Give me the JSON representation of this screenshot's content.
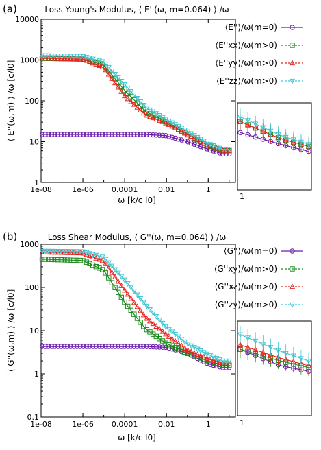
{
  "chart_data": [
    {
      "panel": "(a)",
      "type": "line",
      "title": "Loss Young's Modulus, ⟨ E''(ω, m=0.064) ⟩ /ω",
      "xlabel": "ω [k/c l0]",
      "ylabel": "⟨ E''(ω,m) ⟩ /ω [c/l0]",
      "xscale": "log",
      "yscale": "log",
      "xlim": [
        1e-08,
        20
      ],
      "ylim": [
        1,
        10000
      ],
      "xticks": [
        "1e-08",
        "1e-06",
        "0.0001",
        "0.01",
        "1"
      ],
      "yticks": [
        "1",
        "10",
        "100",
        "1000",
        "10000"
      ],
      "inset_label": "1",
      "series": [
        {
          "name": "⟨E''⟩/ω(m=0)",
          "color": "#6a1aa8",
          "marker": "circle",
          "x": [
            1e-08,
            1e-06,
            0.0001,
            0.001,
            0.01,
            0.1,
            1,
            5
          ],
          "y": [
            15,
            15,
            15,
            15,
            14,
            10,
            6.5,
            5
          ]
        },
        {
          "name": "⟨E''xx⟩/ω(m>0)",
          "color": "#1a8a1a",
          "marker": "square",
          "x": [
            1e-08,
            1e-06,
            1e-05,
            0.0001,
            0.001,
            0.01,
            0.1,
            1,
            5
          ],
          "y": [
            1100,
            1050,
            750,
            180,
            55,
            30,
            15,
            8,
            6
          ]
        },
        {
          "name": "⟨E''yy⟩/ω(m>0)",
          "color": "#e8231d",
          "marker": "triangle-up",
          "x": [
            1e-08,
            1e-06,
            1e-05,
            0.0001,
            0.001,
            0.01,
            0.1,
            1,
            5
          ],
          "y": [
            1100,
            1050,
            650,
            130,
            45,
            28,
            15,
            8,
            6
          ]
        },
        {
          "name": "⟨E''zz⟩/ω(m>0)",
          "color": "#3fc6d2",
          "marker": "triangle-down",
          "x": [
            1e-08,
            1e-06,
            1e-05,
            0.0001,
            0.001,
            0.01,
            0.1,
            1,
            5
          ],
          "y": [
            1300,
            1250,
            900,
            250,
            70,
            35,
            18,
            9,
            6.5
          ]
        }
      ]
    },
    {
      "panel": "(b)",
      "type": "line",
      "title": "Loss Shear Modulus, ⟨ G''(ω, m=0.064) ⟩ /ω",
      "xlabel": "ω [k/c l0]",
      "ylabel": "⟨ G''(ω,m) ⟩ /ω [c/l0]",
      "xscale": "log",
      "yscale": "log",
      "xlim": [
        1e-08,
        20
      ],
      "ylim": [
        0.1,
        1000
      ],
      "xticks": [
        "1e-08",
        "1e-06",
        "0.0001",
        "0.01",
        "1"
      ],
      "yticks": [
        "0.1",
        "1",
        "10",
        "100",
        "1000"
      ],
      "inset_label": "1",
      "series": [
        {
          "name": "⟨G''⟩/ω(m=0)",
          "color": "#6a1aa8",
          "marker": "circle",
          "x": [
            1e-08,
            1e-06,
            0.0001,
            0.001,
            0.01,
            0.1,
            1,
            5
          ],
          "y": [
            4.3,
            4.3,
            4.3,
            4.3,
            4.1,
            3,
            1.7,
            1.4
          ]
        },
        {
          "name": "⟨G''xy⟩/ω(m>0)",
          "color": "#1a8a1a",
          "marker": "square",
          "x": [
            1e-08,
            1e-06,
            1e-05,
            0.0001,
            0.001,
            0.01,
            0.1,
            1,
            5
          ],
          "y": [
            450,
            420,
            250,
            45,
            11,
            5,
            3,
            2,
            1.6
          ]
        },
        {
          "name": "⟨G''xz⟩/ω(m>0)",
          "color": "#e8231d",
          "marker": "triangle-up",
          "x": [
            1e-08,
            1e-06,
            1e-05,
            0.0001,
            0.001,
            0.01,
            0.1,
            1,
            5
          ],
          "y": [
            650,
            620,
            400,
            85,
            20,
            8,
            3.5,
            2.2,
            1.7
          ]
        },
        {
          "name": "⟨G''zy⟩/ω(m>0)",
          "color": "#3fc6d2",
          "marker": "triangle-down",
          "x": [
            1e-08,
            1e-06,
            1e-05,
            0.0001,
            0.001,
            0.01,
            0.1,
            1,
            5
          ],
          "y": [
            700,
            680,
            500,
            150,
            40,
            12,
            5,
            2.8,
            2
          ]
        }
      ]
    }
  ]
}
